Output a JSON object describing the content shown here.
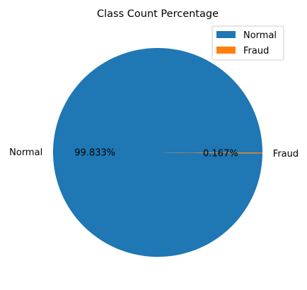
{
  "chart_data": {
    "type": "pie",
    "title": "Class Count Percentage",
    "categories": [
      "Normal",
      "Fraud"
    ],
    "values": [
      99.833,
      0.167
    ],
    "percent_labels": [
      "99.833%",
      "0.167%"
    ],
    "colors": [
      "#1f77b4",
      "#ff7f0e"
    ],
    "legend": {
      "placement": "top-right",
      "entries": [
        "Normal",
        "Fraud"
      ]
    },
    "start_angle_deg": 0,
    "direction": "counterclockwise"
  }
}
